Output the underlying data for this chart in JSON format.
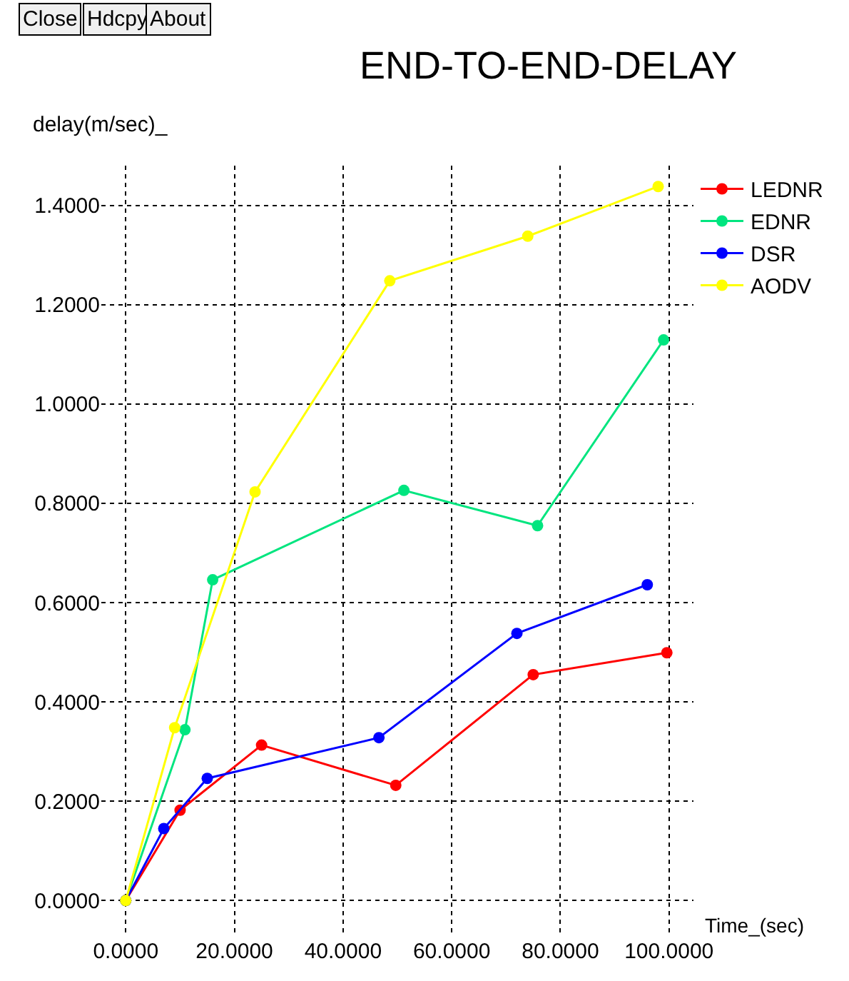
{
  "chart_data": {
    "type": "line",
    "title": "END-TO-END-DELAY",
    "xlabel": "Time_(sec)",
    "ylabel": "delay(m/sec)_",
    "annotations": [
      "Close",
      "Hdcpy",
      "About"
    ],
    "series": [
      {
        "name": "LEDNR",
        "color": "#ff0000",
        "x": [
          0,
          10.0,
          25.0,
          49.7,
          75.0,
          99.6
        ],
        "values": [
          0,
          0.182,
          0.313,
          0.232,
          0.455,
          0.499
        ]
      },
      {
        "name": "EDNR",
        "color": "#00e57f",
        "x": [
          0,
          10.9,
          16.0,
          51.2,
          75.8,
          99.0
        ],
        "values": [
          0,
          0.344,
          0.646,
          0.826,
          0.755,
          1.129
        ]
      },
      {
        "name": "DSR",
        "color": "#0000ff",
        "x": [
          0,
          7.0,
          15.0,
          46.6,
          72.0,
          96.0
        ],
        "values": [
          0,
          0.145,
          0.246,
          0.328,
          0.538,
          0.636
        ]
      },
      {
        "name": "AODV",
        "color": "#ffff00",
        "x": [
          0,
          9.0,
          23.8,
          48.6,
          74.0,
          98.0
        ],
        "values": [
          0,
          0.348,
          0.823,
          1.248,
          1.338,
          1.438
        ]
      }
    ],
    "xlim": [
      -4.5,
      104.5
    ],
    "ylim": [
      -0.07,
      1.48
    ],
    "xticks": [
      {
        "value": 0,
        "label": "0.0000"
      },
      {
        "value": 20,
        "label": "20.0000"
      },
      {
        "value": 40,
        "label": "40.0000"
      },
      {
        "value": 60,
        "label": "60.0000"
      },
      {
        "value": 80,
        "label": "80.0000"
      },
      {
        "value": 100,
        "label": "100.0000"
      }
    ],
    "yticks": [
      {
        "value": 0,
        "label": "0.0000"
      },
      {
        "value": 0.2,
        "label": "0.2000"
      },
      {
        "value": 0.4,
        "label": "0.4000"
      },
      {
        "value": 0.6,
        "label": "0.6000"
      },
      {
        "value": 0.8,
        "label": "0.8000"
      },
      {
        "value": 1.0,
        "label": "1.0000"
      },
      {
        "value": 1.2,
        "label": "1.2000"
      },
      {
        "value": 1.4,
        "label": "1.4000"
      }
    ],
    "grid": true,
    "legend": "top right",
    "marker": "circle",
    "line_style": "solid"
  }
}
